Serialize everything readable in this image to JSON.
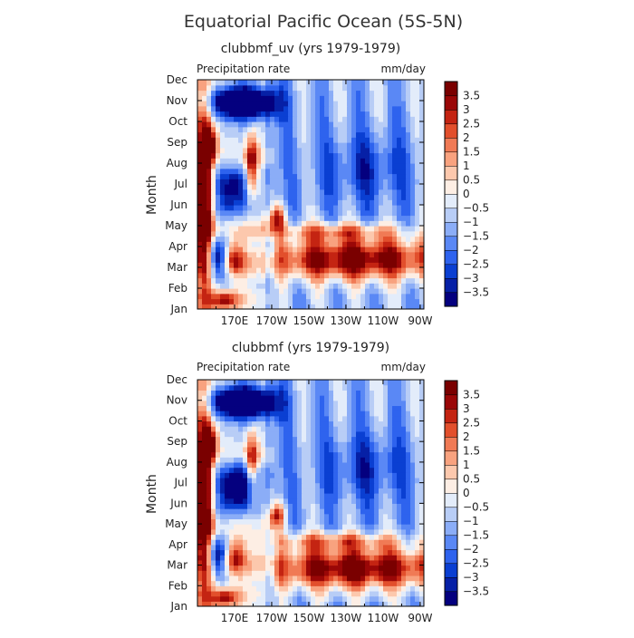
{
  "figure": {
    "title": "Equatorial Pacific Ocean (5S-5N)"
  },
  "colorbar": {
    "colors": [
      "#04007f",
      "#0620a6",
      "#0a3fd2",
      "#2e63ee",
      "#5a88f5",
      "#8badf7",
      "#b8cdf6",
      "#e3ecfa",
      "#fdeee4",
      "#fcc8ad",
      "#f8a27f",
      "#f07a55",
      "#e24f2c",
      "#c42412",
      "#9a0707",
      "#7a0000"
    ],
    "labels": [
      "-3.5",
      "-3",
      "-2.5",
      "-2",
      "-1.5",
      "-1",
      "-0.5",
      "0",
      "0.5",
      "1",
      "1.5",
      "2",
      "2.5",
      "3",
      "3.5"
    ],
    "bounds": [
      -3.5,
      -3,
      -2.5,
      -2,
      -1.5,
      -1,
      -0.5,
      0,
      0.5,
      1,
      1.5,
      2,
      2.5,
      3,
      3.5
    ]
  },
  "chart_data": [
    {
      "type": "heatmap",
      "title": "clubbmf_uv (yrs 1979-1979)",
      "left_label": "Precipitation rate",
      "right_label": "mm/day",
      "ylabel": "Month",
      "xlabel": "",
      "x_tick_labels": [
        "170E",
        "170W",
        "150W",
        "130W",
        "110W",
        "90W"
      ],
      "x_tick_values": [
        170,
        190,
        210,
        230,
        250,
        270
      ],
      "xlim": [
        150,
        272
      ],
      "y_tick_labels": [
        "Jan",
        "Feb",
        "Mar",
        "Apr",
        "May",
        "Jun",
        "Jul",
        "Aug",
        "Sep",
        "Oct",
        "Nov",
        "Dec"
      ],
      "ylim": [
        1,
        12
      ],
      "unit": "mm/day"
    },
    {
      "type": "heatmap",
      "title": "clubbmf (yrs 1979-1979)",
      "left_label": "Precipitation rate",
      "right_label": "mm/day",
      "ylabel": "Month",
      "xlabel": "",
      "x_tick_labels": [
        "170E",
        "170W",
        "150W",
        "130W",
        "110W",
        "90W"
      ],
      "x_tick_values": [
        170,
        190,
        210,
        230,
        250,
        270
      ],
      "xlim": [
        150,
        272
      ],
      "y_tick_labels": [
        "Jan",
        "Feb",
        "Mar",
        "Apr",
        "May",
        "Jun",
        "Jul",
        "Aug",
        "Sep",
        "Oct",
        "Nov",
        "Dec"
      ],
      "ylim": [
        1,
        12
      ],
      "unit": "mm/day"
    }
  ]
}
